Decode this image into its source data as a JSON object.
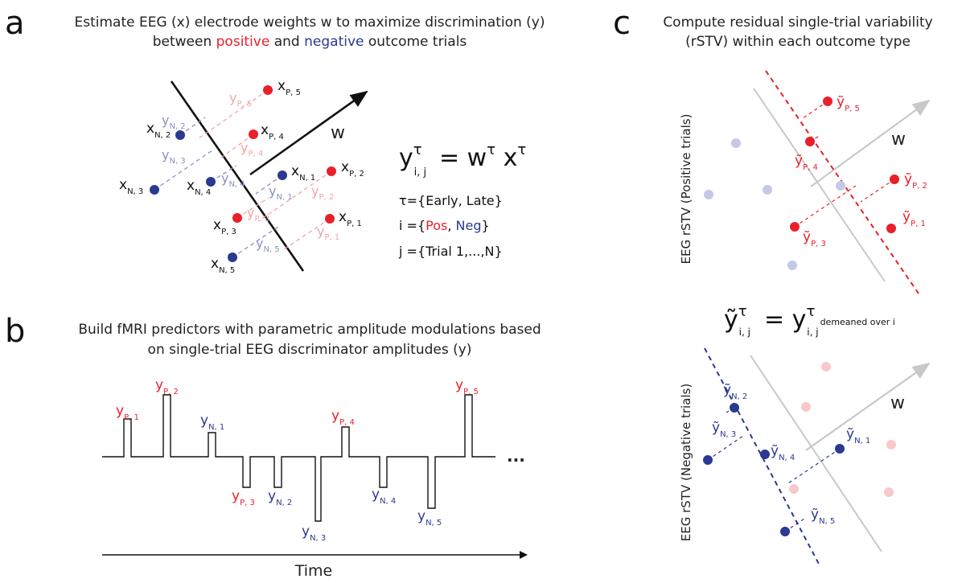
{
  "panel_labels": [
    "a",
    "b",
    "c"
  ],
  "panel_a": {
    "heading_line1": "Estimate EEG (x) electrode weights w to maximize discrimination (y)",
    "heading_line2_pre": "between ",
    "heading_positive": "positive",
    "heading_line2_mid": " and ",
    "heading_negative": "negative",
    "heading_line2_post": " outcome trials",
    "weight_label": "w",
    "equation": {
      "lhs": "y",
      "sup": "τ",
      "sub": "i, j",
      "rhs": "= w",
      "rhs_sup": "τ",
      "rhs_x": " x",
      "rhs_x_sup": "τ"
    },
    "tau_def": "τ={Early, Late}",
    "i_def_pre": "i ={",
    "i_pos": "Pos",
    "i_sep": ", ",
    "i_neg": "Neg",
    "i_post": "}",
    "j_def": "j ={Trial 1,...,N}",
    "x_points": [
      {
        "main": "x",
        "sub": "P, 5"
      },
      {
        "main": "x",
        "sub": "P, 4"
      },
      {
        "main": "x",
        "sub": "P, 2"
      },
      {
        "main": "x",
        "sub": "P, 1"
      },
      {
        "main": "x",
        "sub": "P, 3"
      },
      {
        "main": "x",
        "sub": "N, 2"
      },
      {
        "main": "x",
        "sub": "N, 3"
      },
      {
        "main": "x",
        "sub": "N, 4"
      },
      {
        "main": "x",
        "sub": "N, 1"
      },
      {
        "main": "x",
        "sub": "N, 5"
      }
    ],
    "y_projections": [
      {
        "main": "y",
        "sub": "P, 5"
      },
      {
        "main": "y",
        "sub": "P, 4"
      },
      {
        "main": "y",
        "sub": "P, 2"
      },
      {
        "main": "y",
        "sub": "P, 3"
      },
      {
        "main": "y",
        "sub": "P, 1"
      },
      {
        "main": "y",
        "sub": "N, 2"
      },
      {
        "main": "y",
        "sub": "N, 3"
      },
      {
        "main": "y",
        "sub": "N, 4"
      },
      {
        "main": "y",
        "sub": "N, 1"
      },
      {
        "main": "y",
        "sub": "N, 5"
      }
    ]
  },
  "panel_b": {
    "heading_line1": "Build fMRI predictors with parametric amplitude modulations based",
    "heading_line2": "on single-trial EEG discriminator amplitudes (y)",
    "ellipsis": "...",
    "time_label": "Time",
    "pulses": [
      {
        "main": "y",
        "sub": "P, 1",
        "kind": "pos"
      },
      {
        "main": "y",
        "sub": "P, 2",
        "kind": "pos"
      },
      {
        "main": "y",
        "sub": "N, 1",
        "kind": "neg"
      },
      {
        "main": "y",
        "sub": "P, 3",
        "kind": "pos"
      },
      {
        "main": "y",
        "sub": "N, 2",
        "kind": "neg"
      },
      {
        "main": "y",
        "sub": "N, 3",
        "kind": "neg"
      },
      {
        "main": "y",
        "sub": "P, 4",
        "kind": "pos"
      },
      {
        "main": "y",
        "sub": "N, 4",
        "kind": "neg"
      },
      {
        "main": "y",
        "sub": "N, 5",
        "kind": "neg"
      },
      {
        "main": "y",
        "sub": "P, 5",
        "kind": "pos"
      }
    ]
  },
  "panel_c": {
    "heading_line1": "Compute residual single-trial variability",
    "heading_line2": "(rSTV) within each outcome type",
    "ylabel_top": "EEG rSTV (Positive trials)",
    "ylabel_bottom": "EEG rSTV (Negative trials)",
    "weight_label": "w",
    "equation": {
      "lhs": "ỹ",
      "sup": "τ",
      "sub": "i, j",
      "rhs": "= y",
      "rhs_sup": "τ",
      "rhs_sub": "i, j",
      "rhs_note": "demeaned over i"
    },
    "top_points": [
      {
        "main": "ỹ",
        "sub": "P, 5"
      },
      {
        "main": "ỹ",
        "sub": "P, 4"
      },
      {
        "main": "ỹ",
        "sub": "P, 2"
      },
      {
        "main": "ỹ",
        "sub": "P, 1"
      },
      {
        "main": "ỹ",
        "sub": "P, 3"
      }
    ],
    "bottom_points": [
      {
        "main": "ỹ",
        "sub": "N, 2"
      },
      {
        "main": "ỹ",
        "sub": "N, 3"
      },
      {
        "main": "ỹ",
        "sub": "N, 4"
      },
      {
        "main": "ỹ",
        "sub": "N, 1"
      },
      {
        "main": "ỹ",
        "sub": "N, 5"
      }
    ]
  },
  "colors": {
    "positive": "#e8202a",
    "negative": "#2b3990",
    "positive_light": "#f4a3a6",
    "negative_light": "#8a90c8",
    "gray": "#bfbfbf",
    "text": "#222222"
  }
}
